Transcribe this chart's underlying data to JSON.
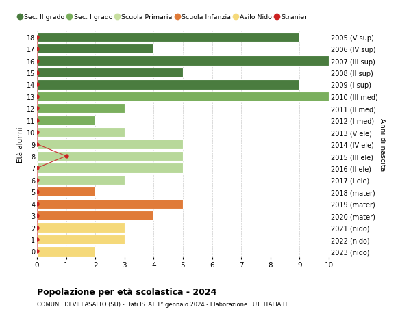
{
  "ages": [
    18,
    17,
    16,
    15,
    14,
    13,
    12,
    11,
    10,
    9,
    8,
    7,
    6,
    5,
    4,
    3,
    2,
    1,
    0
  ],
  "right_labels": [
    "2005 (V sup)",
    "2006 (IV sup)",
    "2007 (III sup)",
    "2008 (II sup)",
    "2009 (I sup)",
    "2010 (III med)",
    "2011 (II med)",
    "2012 (I med)",
    "2013 (V ele)",
    "2014 (IV ele)",
    "2015 (III ele)",
    "2016 (II ele)",
    "2017 (I ele)",
    "2018 (mater)",
    "2019 (mater)",
    "2020 (mater)",
    "2021 (nido)",
    "2022 (nido)",
    "2023 (nido)"
  ],
  "bar_values": [
    9,
    4,
    10,
    5,
    9,
    10,
    3,
    2,
    3,
    5,
    5,
    5,
    3,
    2,
    5,
    4,
    3,
    3,
    2
  ],
  "bar_colors": [
    "#4a7c3f",
    "#4a7c3f",
    "#4a7c3f",
    "#4a7c3f",
    "#4a7c3f",
    "#7baf5e",
    "#7baf5e",
    "#7baf5e",
    "#b8d89a",
    "#b8d89a",
    "#b8d89a",
    "#b8d89a",
    "#b8d89a",
    "#e07b39",
    "#e07b39",
    "#e07b39",
    "#f5d97a",
    "#f5d97a",
    "#f5d97a"
  ],
  "stranieri_ages": [
    18,
    17,
    16,
    15,
    14,
    13,
    12,
    11,
    10,
    9,
    8,
    7,
    6,
    5,
    4,
    3,
    2,
    1,
    0
  ],
  "stranieri_values": [
    0,
    0,
    0,
    0,
    0,
    0,
    0,
    0,
    0,
    0,
    1,
    0,
    0,
    0,
    0,
    0,
    0,
    0,
    0
  ],
  "legend_labels": [
    "Sec. II grado",
    "Sec. I grado",
    "Scuola Primaria",
    "Scuola Infanzia",
    "Asilo Nido",
    "Stranieri"
  ],
  "legend_colors": [
    "#4a7c3f",
    "#7baf5e",
    "#c8dfa0",
    "#e07b39",
    "#f5d97a",
    "#cc2222"
  ],
  "title": "Popolazione per età scolastica - 2024",
  "subtitle": "COMUNE DI VILLASALTO (SU) - Dati ISTAT 1° gennaio 2024 - Elaborazione TUTTITALIA.IT",
  "ylabel_left": "Età alunni",
  "ylabel_right": "Anni di nascita",
  "xlim": [
    0,
    10
  ],
  "xticks": [
    0,
    1,
    2,
    3,
    4,
    5,
    6,
    7,
    8,
    9,
    10
  ],
  "background_color": "#ffffff",
  "grid_color": "#cccccc",
  "stranieri_line_color": "#cc3333",
  "stranieri_dot_color": "#cc2222",
  "bar_height": 0.82,
  "bar_edgecolor": "#ffffff"
}
